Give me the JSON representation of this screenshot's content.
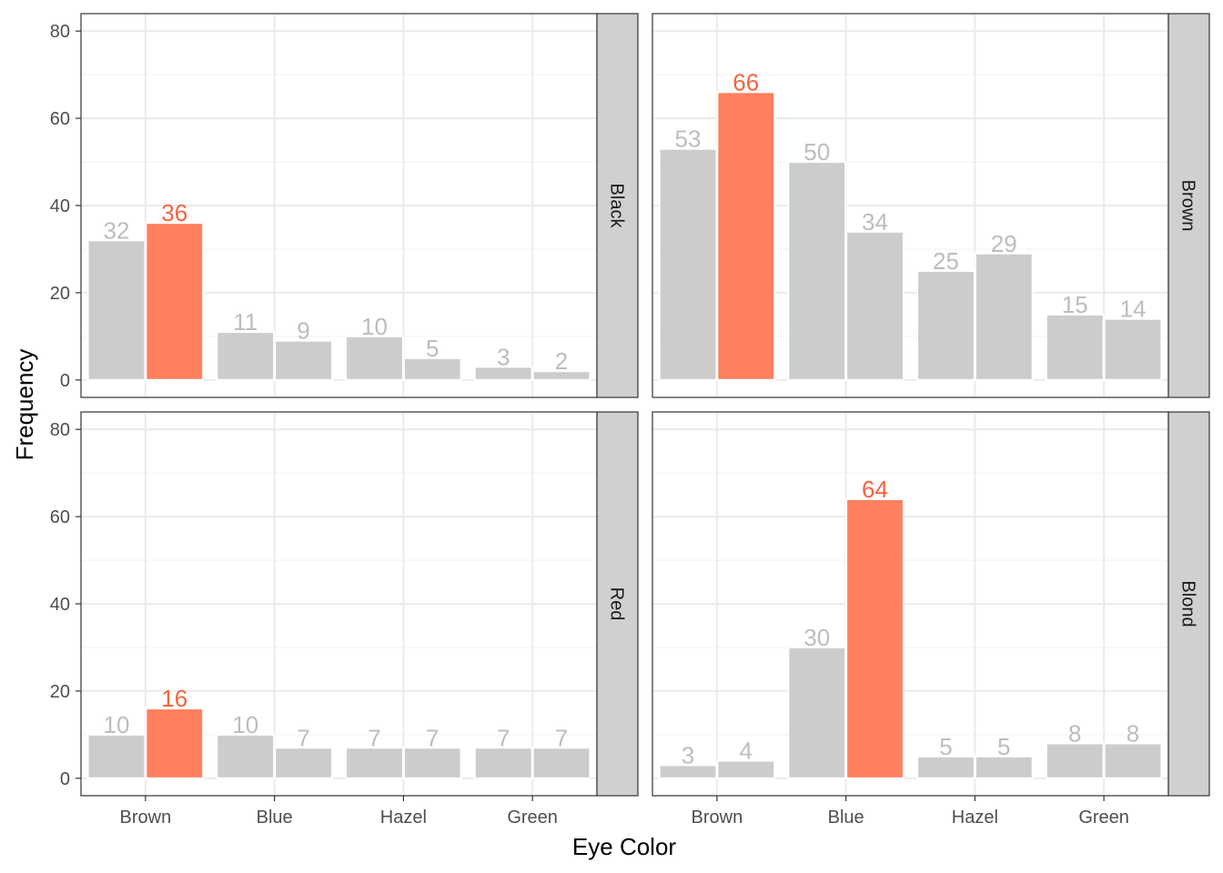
{
  "chart_data": {
    "type": "bar",
    "layout": "faceted 2x2 grid, strip labels on right",
    "xlabel": "Eye Color",
    "ylabel": "Frequency",
    "categories": [
      "Brown",
      "Blue",
      "Hazel",
      "Green"
    ],
    "ylim": [
      -4,
      84
    ],
    "yticks": [
      0,
      20,
      40,
      60,
      80
    ],
    "grid": true,
    "colors": {
      "highlight": "#ff7f5e",
      "highlight_label": "#f4643d",
      "normal": "#cccccc",
      "normal_label": "#bdbdbd",
      "strip": "#d0d0d0"
    },
    "panels": [
      {
        "label": "Black",
        "values": [
          [
            32,
            36
          ],
          [
            11,
            9
          ],
          [
            10,
            5
          ],
          [
            3,
            2
          ]
        ],
        "highlight": [
          0,
          1
        ]
      },
      {
        "label": "Brown",
        "values": [
          [
            53,
            66
          ],
          [
            50,
            34
          ],
          [
            25,
            29
          ],
          [
            15,
            14
          ]
        ],
        "highlight": [
          0,
          1
        ]
      },
      {
        "label": "Red",
        "values": [
          [
            10,
            16
          ],
          [
            10,
            7
          ],
          [
            7,
            7
          ],
          [
            7,
            7
          ]
        ],
        "highlight": [
          0,
          1
        ]
      },
      {
        "label": "Blond",
        "values": [
          [
            3,
            4
          ],
          [
            30,
            64
          ],
          [
            5,
            5
          ],
          [
            8,
            8
          ]
        ],
        "highlight": [
          1,
          1
        ]
      }
    ]
  }
}
